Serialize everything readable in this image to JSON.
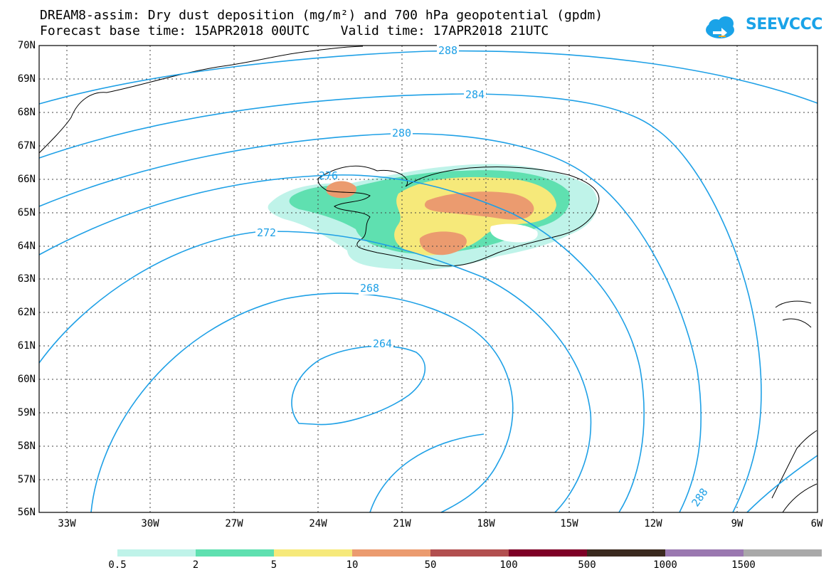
{
  "header": {
    "title_line1": "DREAM8-assim: Dry dust deposition (mg/m²) and 700 hPa geopotential (gpdm)",
    "title_line2": "Forecast base time: 15APR2018 00UTC    Valid time: 17APR2018 21UTC",
    "logo_text": "SEEVCCC"
  },
  "map": {
    "region": "North Atlantic / Iceland",
    "lon_range": [
      -34,
      -6
    ],
    "lat_range": [
      56,
      70
    ],
    "lat_labels": [
      "70N",
      "69N",
      "68N",
      "67N",
      "66N",
      "65N",
      "64N",
      "63N",
      "62N",
      "61N",
      "60N",
      "59N",
      "58N",
      "57N",
      "56N"
    ],
    "lon_labels": [
      "33W",
      "30W",
      "27W",
      "24W",
      "21W",
      "18W",
      "15W",
      "12W",
      "9W",
      "6W"
    ],
    "contour_labels": [
      "288",
      "284",
      "280",
      "276",
      "272",
      "268",
      "264",
      "288",
      "288"
    ],
    "contour_color": "#1ea0e6"
  },
  "legend": {
    "colors": [
      "#bff3e9",
      "#5fe0b0",
      "#f6e97a",
      "#eb9b6f",
      "#b24f4f",
      "#7e0026",
      "#3b2a1f",
      "#9a78b0",
      "#a9a9a9"
    ],
    "labels": [
      "0.5",
      "2",
      "5",
      "10",
      "50",
      "100",
      "500",
      "1000",
      "1500"
    ]
  }
}
